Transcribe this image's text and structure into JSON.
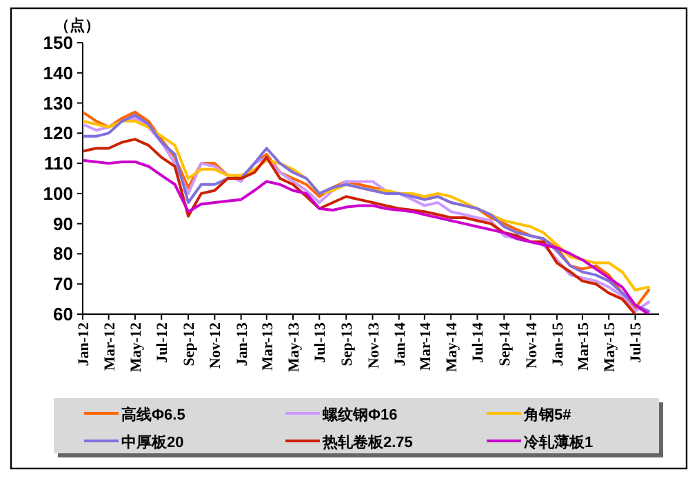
{
  "chart_data": {
    "type": "line",
    "ylabel": "（点）",
    "x": [
      "2012-01",
      "2012-02",
      "2012-03",
      "2012-04",
      "2012-05",
      "2012-06",
      "2012-07",
      "2012-08",
      "2012-09",
      "2012-10",
      "2012-11",
      "2012-12",
      "2013-01",
      "2013-02",
      "2013-03",
      "2013-04",
      "2013-05",
      "2013-06",
      "2013-07",
      "2013-08",
      "2013-09",
      "2013-10",
      "2013-11",
      "2013-12",
      "2014-01",
      "2014-02",
      "2014-03",
      "2014-04",
      "2014-05",
      "2014-06",
      "2014-07",
      "2014-08",
      "2014-09",
      "2014-10",
      "2014-11",
      "2014-12",
      "2015-01",
      "2015-02",
      "2015-03",
      "2015-04",
      "2015-05",
      "2015-06",
      "2015-07",
      "2015-08"
    ],
    "xlim": [
      "2012-01-01",
      "2015-08-25"
    ],
    "xticks": [
      {
        "value": "2012-01",
        "label": "Jan-12"
      },
      {
        "value": "2012-03",
        "label": "Mar-12"
      },
      {
        "value": "2012-05",
        "label": "May-12"
      },
      {
        "value": "2012-07",
        "label": "Jul-12"
      },
      {
        "value": "2012-09",
        "label": "Sep-12"
      },
      {
        "value": "2012-11",
        "label": "Nov-12"
      },
      {
        "value": "2013-01",
        "label": "Jan-13"
      },
      {
        "value": "2013-03",
        "label": "Mar-13"
      },
      {
        "value": "2013-05",
        "label": "May-13"
      },
      {
        "value": "2013-07",
        "label": "Jul-13"
      },
      {
        "value": "2013-09",
        "label": "Sep-13"
      },
      {
        "value": "2013-11",
        "label": "Nov-13"
      },
      {
        "value": "2014-01",
        "label": "Jan-14"
      },
      {
        "value": "2014-03",
        "label": "Mar-14"
      },
      {
        "value": "2014-05",
        "label": "May-14"
      },
      {
        "value": "2014-07",
        "label": "Jul-14"
      },
      {
        "value": "2014-09",
        "label": "Sep-14"
      },
      {
        "value": "2014-11",
        "label": "Nov-14"
      },
      {
        "value": "2015-01",
        "label": "Jan-15"
      },
      {
        "value": "2015-03",
        "label": "Mar-15"
      },
      {
        "value": "2015-05",
        "label": "May-15"
      },
      {
        "value": "2015-07",
        "label": "Jul-15"
      }
    ],
    "ylim": [
      60,
      150
    ],
    "yticks": [
      60,
      70,
      80,
      90,
      100,
      110,
      120,
      130,
      140,
      150
    ],
    "legend": "bottom",
    "series": [
      {
        "name": "高线Φ6.5",
        "color": "#ff6600",
        "values": [
          127,
          124,
          122,
          125,
          127,
          124,
          118,
          112,
          102,
          110,
          110,
          106,
          105,
          110,
          113,
          107,
          105,
          103,
          99,
          102,
          104,
          103,
          102,
          101,
          100,
          99.5,
          98,
          99,
          97,
          96,
          95,
          92,
          90,
          88,
          86,
          85,
          82,
          76,
          75,
          76,
          73,
          67,
          62,
          68
        ]
      },
      {
        "name": "螺纹钢Φ16",
        "color": "#cc99ff",
        "values": [
          123,
          121,
          122,
          124,
          125,
          122,
          117,
          110,
          100,
          110,
          109,
          106,
          104,
          110,
          112,
          107,
          104,
          101,
          97,
          101,
          104,
          104,
          104,
          101,
          100,
          98,
          96,
          97,
          94,
          93,
          92,
          91,
          86,
          85,
          84,
          83,
          78,
          73,
          72,
          71,
          69,
          66,
          61,
          64
        ]
      },
      {
        "name": "角钢5#",
        "color": "#ffc000",
        "values": [
          124,
          123,
          122,
          124,
          124,
          122,
          119,
          116,
          105,
          108,
          108,
          106,
          106,
          108,
          111,
          110,
          108,
          105,
          100,
          101,
          103,
          102,
          101,
          101,
          100,
          100,
          99,
          100,
          99,
          97,
          95,
          93,
          91,
          90,
          89,
          87,
          83,
          79,
          78,
          77,
          77,
          74,
          68,
          69
        ]
      },
      {
        "name": "中厚板20",
        "color": "#8070dd",
        "values": [
          119,
          119,
          120,
          124,
          126,
          123,
          117,
          113,
          97,
          103,
          103,
          105,
          105,
          110,
          115,
          110,
          107,
          105,
          100,
          102,
          103,
          102,
          101,
          100,
          100,
          99,
          98,
          99,
          97,
          96,
          95,
          93,
          89,
          87,
          86,
          85,
          81,
          76,
          74,
          73,
          71,
          67,
          63,
          61
        ]
      },
      {
        "name": "热轧卷板2.75",
        "color": "#cc2200",
        "values": [
          114,
          115,
          115,
          117,
          118,
          116,
          112,
          109,
          92.5,
          100,
          101,
          105,
          105,
          107,
          112,
          105,
          103,
          99,
          95,
          97,
          99,
          98,
          97,
          96,
          95,
          94.5,
          94,
          93,
          92,
          92,
          91,
          90,
          87,
          86,
          84,
          84,
          77,
          74,
          71,
          70,
          67,
          65,
          60,
          null
        ]
      },
      {
        "name": "冷轧薄板1",
        "color": "#cc00cc",
        "values": [
          111,
          110.5,
          110,
          110.5,
          110.5,
          109,
          106,
          103,
          94,
          96.5,
          97,
          97.5,
          98,
          101,
          104,
          103,
          101,
          100,
          95,
          94.5,
          95.5,
          96,
          96,
          95,
          94.5,
          94,
          93,
          92,
          91,
          90,
          89,
          88,
          87,
          85,
          84,
          83,
          82,
          80,
          78,
          75,
          72,
          69,
          63,
          60
        ]
      }
    ]
  }
}
